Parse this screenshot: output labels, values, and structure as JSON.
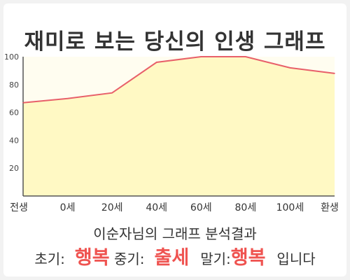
{
  "title": "재미로 보는 당신의 인생 그래프",
  "summary": "이순자님의 그래프 분석결과",
  "result": {
    "early_label": "초기:",
    "early_value": "행복",
    "mid_label": "중기:",
    "mid_value": "출세",
    "late_label": "말기:",
    "late_value": "행복",
    "suffix": "입니다"
  },
  "colors": {
    "line": "#e8606a",
    "fill": "#fff9c4",
    "plot_bg": "#fffdf0",
    "highlight": "#ef5350"
  },
  "chart_data": {
    "type": "area",
    "title": "재미로 보는 당신의 인생 그래프",
    "xlabel": "",
    "ylabel": "",
    "x_tick_labels": [
      "전생",
      "0세",
      "20세",
      "40세",
      "60세",
      "80세",
      "100세",
      "환생"
    ],
    "y_ticks": [
      20,
      40,
      60,
      80,
      100
    ],
    "ylim": [
      0,
      100
    ],
    "grid": false,
    "legend": "none",
    "series": [
      {
        "x": [
          "전생",
          "0세",
          "20세",
          "40세",
          "60세",
          "80세",
          "100세",
          "환생"
        ],
        "values": [
          67,
          70,
          74,
          96,
          100,
          100,
          92,
          88
        ]
      }
    ]
  }
}
